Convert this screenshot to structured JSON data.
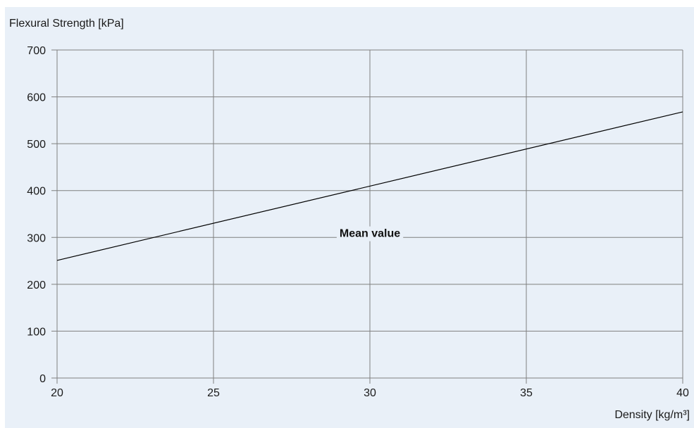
{
  "chart_data": {
    "type": "line",
    "title": "",
    "ylabel": "Flexural Strength [kPa]",
    "xlabel": "Density [kg/m³]",
    "xlim": [
      20,
      40
    ],
    "ylim": [
      0,
      700
    ],
    "x_ticks": [
      20,
      25,
      30,
      35,
      40
    ],
    "y_ticks": [
      0,
      100,
      200,
      300,
      400,
      500,
      600,
      700
    ],
    "grid": true,
    "series": [
      {
        "x": [
          20,
          40
        ],
        "y": [
          251,
          568
        ]
      }
    ],
    "annotations": [
      {
        "text": "Mean value",
        "x": 30,
        "y": 310
      }
    ],
    "colors": {
      "background": "#e9f0f8",
      "grid": "#7f7f7f",
      "line": "#000000"
    }
  }
}
